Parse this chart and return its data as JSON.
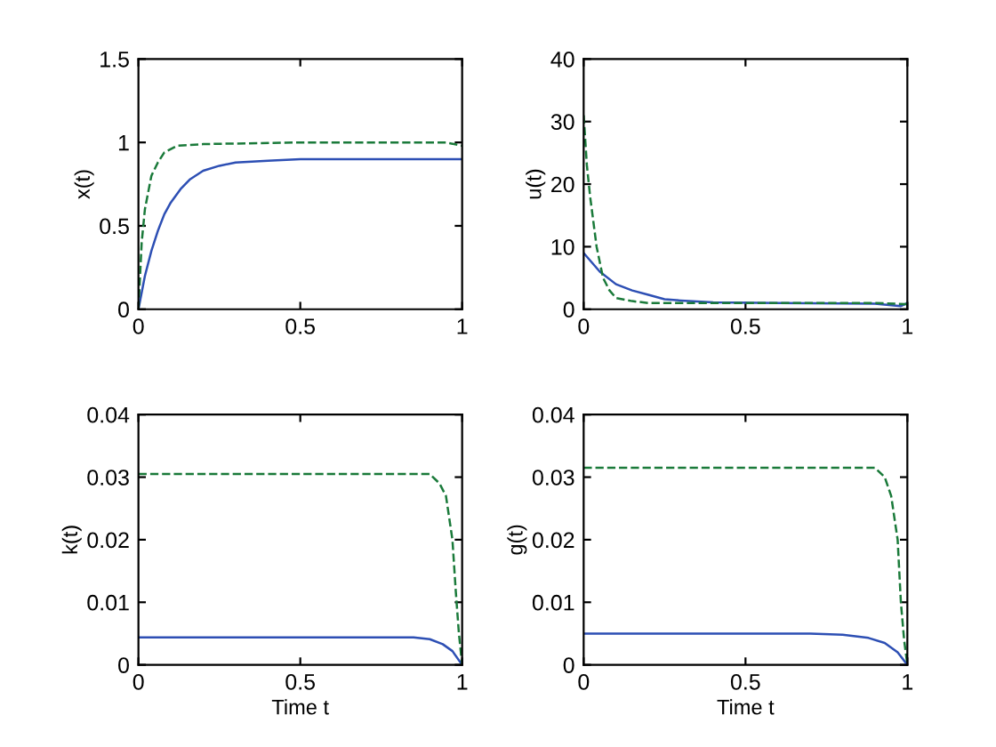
{
  "chart_data": [
    {
      "type": "line",
      "ylabel": "x(t)",
      "xlim": [
        0,
        1
      ],
      "ylim": [
        0,
        1.5
      ],
      "xticks": [
        0,
        0.5,
        1
      ],
      "yticks": [
        0,
        0.5,
        1,
        1.5
      ],
      "grid": false,
      "marker": "none",
      "series": [
        {
          "color": "#2d4fb4",
          "line_style": "solid",
          "x": [
            0,
            0.02,
            0.04,
            0.06,
            0.08,
            0.1,
            0.13,
            0.16,
            0.2,
            0.25,
            0.3,
            0.4,
            0.5,
            0.7,
            1
          ],
          "values": [
            0,
            0.2,
            0.35,
            0.47,
            0.57,
            0.64,
            0.72,
            0.78,
            0.83,
            0.86,
            0.88,
            0.89,
            0.9,
            0.9,
            0.9
          ]
        },
        {
          "color": "#1a7a3a",
          "line_style": "dashed",
          "x": [
            0,
            0.01,
            0.02,
            0.04,
            0.06,
            0.08,
            0.12,
            0.2,
            0.5,
            0.95,
            1
          ],
          "values": [
            0,
            0.4,
            0.6,
            0.8,
            0.88,
            0.94,
            0.98,
            0.99,
            1,
            1,
            0.98
          ]
        }
      ]
    },
    {
      "type": "line",
      "ylabel": "u(t)",
      "xlim": [
        0,
        1
      ],
      "ylim": [
        0,
        40
      ],
      "xticks": [
        0,
        0.5,
        1
      ],
      "yticks": [
        0,
        10,
        20,
        30,
        40
      ],
      "grid": false,
      "marker": "none",
      "series": [
        {
          "color": "#2d4fb4",
          "line_style": "solid",
          "x": [
            0,
            0.05,
            0.1,
            0.15,
            0.2,
            0.25,
            0.3,
            0.4,
            0.6,
            0.9,
            0.98,
            1
          ],
          "values": [
            9,
            6,
            4,
            3,
            2.3,
            1.6,
            1.4,
            1.1,
            1,
            0.9,
            0.5,
            1
          ]
        },
        {
          "color": "#1a7a3a",
          "line_style": "dashed",
          "x": [
            0,
            0.01,
            0.02,
            0.04,
            0.06,
            0.08,
            0.1,
            0.15,
            0.2,
            0.3,
            0.6,
            0.9,
            1
          ],
          "values": [
            31,
            23,
            18,
            10,
            5,
            3,
            1.8,
            1.3,
            1,
            1,
            1,
            1,
            0.8
          ]
        }
      ]
    },
    {
      "type": "line",
      "ylabel": "k(t)",
      "xlabel": "Time t",
      "xlim": [
        0,
        1
      ],
      "ylim": [
        0,
        0.04
      ],
      "xticks": [
        0,
        0.5,
        1
      ],
      "yticks": [
        0,
        0.01,
        0.02,
        0.03,
        0.04
      ],
      "grid": false,
      "marker": "none",
      "series": [
        {
          "color": "#2d4fb4",
          "line_style": "solid",
          "x": [
            0,
            0.85,
            0.9,
            0.94,
            0.97,
            1
          ],
          "values": [
            0.0044,
            0.0044,
            0.0041,
            0.0033,
            0.0022,
            0
          ]
        },
        {
          "color": "#1a7a3a",
          "line_style": "dashed",
          "x": [
            0,
            0.9,
            0.93,
            0.95,
            0.97,
            0.98,
            0.99,
            1
          ],
          "values": [
            0.0305,
            0.0305,
            0.029,
            0.027,
            0.02,
            0.012,
            0.005,
            0
          ]
        }
      ]
    },
    {
      "type": "line",
      "ylabel": "g(t)",
      "xlabel": "Time t",
      "xlim": [
        0,
        1
      ],
      "ylim": [
        0,
        0.04
      ],
      "xticks": [
        0,
        0.5,
        1
      ],
      "yticks": [
        0,
        0.01,
        0.02,
        0.03,
        0.04
      ],
      "grid": false,
      "marker": "none",
      "series": [
        {
          "color": "#2d4fb4",
          "line_style": "solid",
          "x": [
            0,
            0.7,
            0.8,
            0.88,
            0.93,
            0.97,
            1
          ],
          "values": [
            0.005,
            0.005,
            0.0048,
            0.0043,
            0.0035,
            0.002,
            0
          ]
        },
        {
          "color": "#1a7a3a",
          "line_style": "dashed",
          "x": [
            0,
            0.9,
            0.93,
            0.95,
            0.97,
            0.98,
            0.99,
            1
          ],
          "values": [
            0.0315,
            0.0315,
            0.03,
            0.027,
            0.02,
            0.01,
            0.004,
            0
          ]
        }
      ]
    }
  ]
}
